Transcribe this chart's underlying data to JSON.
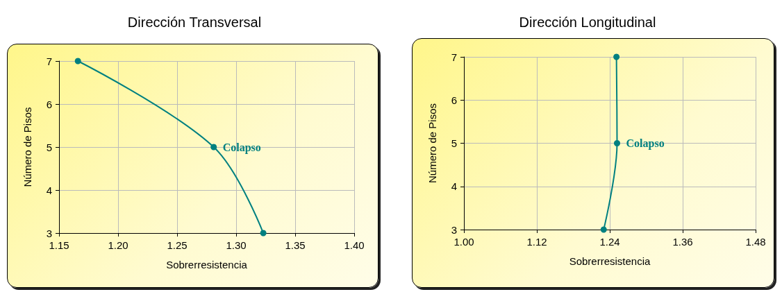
{
  "chart_data": [
    {
      "type": "line",
      "title": "Dirección Transversal",
      "xlabel": "Sobrerresistencia",
      "ylabel": "Número de Pisos",
      "x": [
        1.166,
        1.281,
        1.323
      ],
      "series": [
        {
          "color": "#008080",
          "values": [
            7,
            5,
            3
          ]
        }
      ],
      "xlim": [
        1.15,
        1.4
      ],
      "xticks": [
        1.15,
        {
          "value": 1.2,
          "label": "1.20"
        },
        1.25,
        {
          "value": 1.3,
          "label": "1.30"
        },
        1.35,
        {
          "value": 1.4,
          "label": "1.40"
        }
      ],
      "ylim": [
        3,
        7
      ],
      "yticks": [
        3,
        4,
        5,
        6,
        7
      ],
      "grid": true,
      "marker": "circle",
      "line_style": "solid",
      "annotations": [
        {
          "text": "Colapso",
          "x": 1.281,
          "y": 5
        }
      ]
    },
    {
      "type": "line",
      "title": "Dirección Longitudinal",
      "xlabel": "Sobrerresistencia",
      "ylabel": "Número de Pisos",
      "x": [
        1.251,
        1.252,
        1.23
      ],
      "series": [
        {
          "color": "#008080",
          "values": [
            7,
            5,
            3
          ]
        }
      ],
      "xlim": [
        1,
        1.48
      ],
      "xticks": [
        {
          "value": 1,
          "label": "1.00"
        },
        1.12,
        1.24,
        1.36,
        1.48
      ],
      "ylim": [
        3,
        7
      ],
      "yticks": [
        3,
        4,
        5,
        6,
        7
      ],
      "grid": true,
      "marker": "circle",
      "line_style": "solid",
      "annotations": [
        {
          "text": "Colapso",
          "x": 1.252,
          "y": 5
        }
      ]
    }
  ]
}
